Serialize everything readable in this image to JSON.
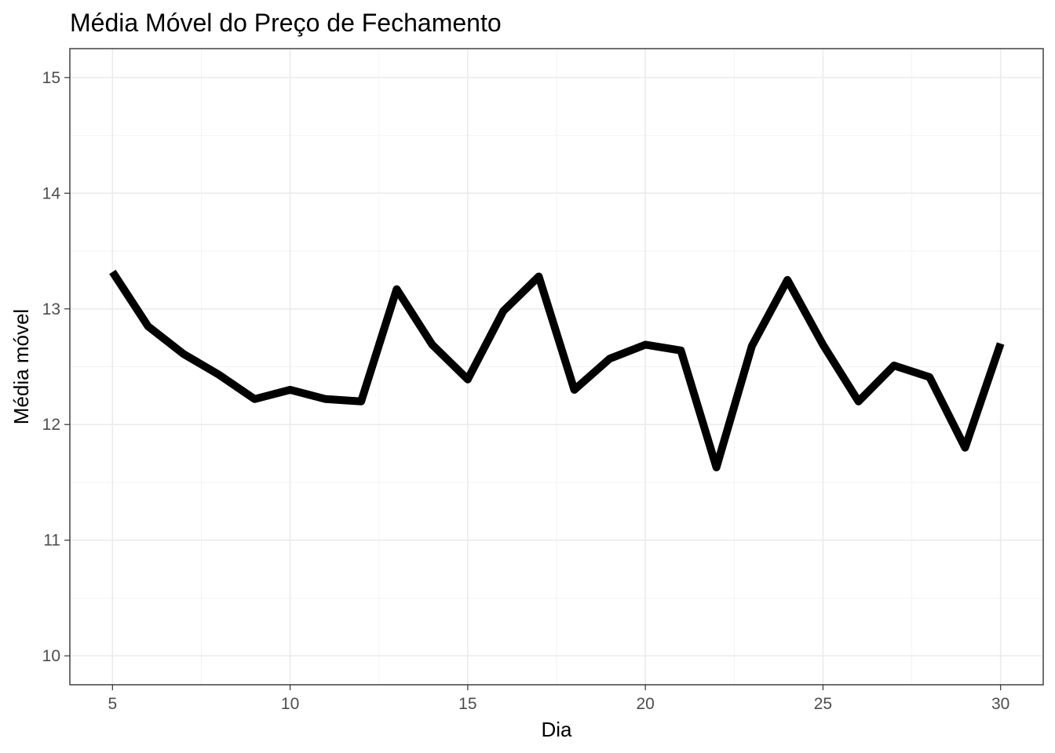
{
  "chart_data": {
    "type": "line",
    "title": "Média Móvel do Preço de Fechamento",
    "xlabel": "Dia",
    "ylabel": "Média móvel",
    "xlim": [
      3.8,
      31.2
    ],
    "ylim": [
      9.75,
      15.25
    ],
    "x_ticks": [
      5,
      10,
      15,
      20,
      25,
      30
    ],
    "y_ticks": [
      10,
      11,
      12,
      13,
      14,
      15
    ],
    "x_tick_labels": [
      "5",
      "10",
      "15",
      "20",
      "25",
      "30"
    ],
    "y_tick_labels": [
      "10",
      "11",
      "12",
      "13",
      "14",
      "15"
    ],
    "grid": true,
    "series": [
      {
        "color": "#000000",
        "x": [
          5,
          6,
          7,
          8,
          9,
          10,
          11,
          12,
          13,
          14,
          15,
          16,
          17,
          18,
          19,
          20,
          21,
          22,
          23,
          24,
          25,
          26,
          27,
          28,
          29,
          30
        ],
        "y": [
          13.32,
          12.85,
          12.61,
          12.43,
          12.22,
          12.3,
          12.22,
          12.2,
          13.17,
          12.69,
          12.39,
          12.98,
          13.28,
          12.3,
          12.57,
          12.69,
          12.64,
          11.63,
          12.68,
          13.25,
          12.69,
          12.2,
          12.51,
          12.41,
          11.8,
          12.7
        ]
      }
    ]
  }
}
